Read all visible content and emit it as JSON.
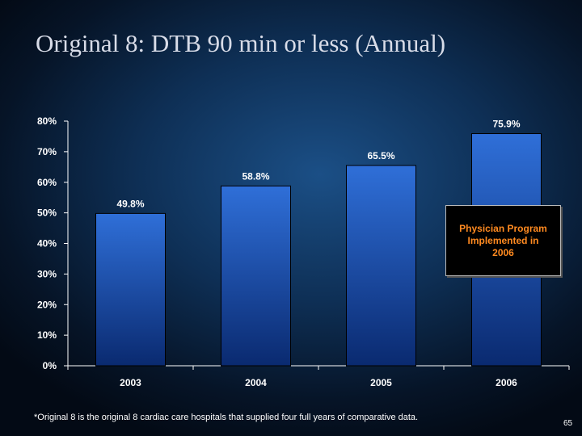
{
  "slide": {
    "title": "Original 8: DTB 90 min or less (Annual)",
    "footnote": "*Original 8 is the original 8 cardiac care hospitals that supplied four full years of comparative data.",
    "page_number": "65"
  },
  "annotation": {
    "text": "Physician Program\nImplemented in\n2006"
  },
  "colors": {
    "bar_top": "#2f6fd8",
    "bar_bottom": "#0a2a70",
    "annotation_text": "#ff8a20"
  },
  "chart_data": {
    "type": "bar",
    "title": "",
    "xlabel": "",
    "ylabel": "",
    "categories": [
      "2003",
      "2004",
      "2005",
      "2006"
    ],
    "values": [
      49.8,
      58.8,
      65.5,
      75.9
    ],
    "data_labels": [
      "49.8%",
      "58.8%",
      "65.5%",
      "75.9%"
    ],
    "ylim": [
      0,
      80
    ],
    "yticks": [
      0,
      10,
      20,
      30,
      40,
      50,
      60,
      70,
      80
    ],
    "ytick_labels": [
      "0%",
      "10%",
      "20%",
      "30%",
      "40%",
      "50%",
      "60%",
      "70%",
      "80%"
    ],
    "grid": false,
    "legend": "none"
  }
}
